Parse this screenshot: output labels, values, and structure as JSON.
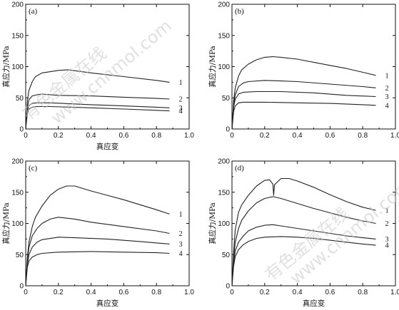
{
  "watermark": {
    "cn": "有色金属在线",
    "url": "www.cnnmol.com"
  },
  "chart_data": [
    {
      "type": "line",
      "panel": "(a)",
      "xlabel": "真应变",
      "ylabel": "真应力/MPa",
      "xlim": [
        0,
        1.0
      ],
      "ylim": [
        0,
        200
      ],
      "xticks": [
        "0",
        "0.2",
        "0.4",
        "0.6",
        "0.8",
        "1.0"
      ],
      "yticks": [
        "0",
        "50",
        "100",
        "150",
        "200"
      ],
      "series": [
        {
          "name": "1",
          "x": [
            0,
            0.01,
            0.02,
            0.04,
            0.06,
            0.1,
            0.2,
            0.26,
            0.4,
            0.6,
            0.8,
            0.88
          ],
          "y": [
            0,
            45,
            62,
            76,
            84,
            90,
            94,
            95,
            90,
            84,
            78,
            75
          ]
        },
        {
          "name": "2",
          "x": [
            0,
            0.01,
            0.02,
            0.04,
            0.07,
            0.1,
            0.2,
            0.4,
            0.6,
            0.8,
            0.88
          ],
          "y": [
            0,
            35,
            47,
            53,
            55,
            56,
            54,
            53,
            51,
            49,
            48
          ]
        },
        {
          "name": "3",
          "x": [
            0,
            0.01,
            0.02,
            0.04,
            0.07,
            0.15,
            0.4,
            0.6,
            0.8,
            0.88
          ],
          "y": [
            0,
            30,
            38,
            41,
            42,
            42,
            39,
            37,
            35,
            34
          ]
        },
        {
          "name": "4",
          "x": [
            0,
            0.01,
            0.02,
            0.04,
            0.07,
            0.15,
            0.4,
            0.6,
            0.8,
            0.88
          ],
          "y": [
            0,
            25,
            32,
            35,
            36,
            36,
            34,
            32,
            30,
            29
          ]
        }
      ]
    },
    {
      "type": "line",
      "panel": "(b)",
      "xlabel": "",
      "ylabel": "真应力/MPa",
      "xlim": [
        0,
        1.0
      ],
      "ylim": [
        0,
        200
      ],
      "xticks": [
        "0",
        "0.2",
        "0.4",
        "0.6",
        "0.8",
        "1.0"
      ],
      "yticks": [
        "0",
        "50",
        "100",
        "150",
        "200"
      ],
      "series": [
        {
          "name": "1",
          "x": [
            0,
            0.01,
            0.02,
            0.04,
            0.06,
            0.1,
            0.15,
            0.2,
            0.25,
            0.3,
            0.4,
            0.5,
            0.6,
            0.7,
            0.8,
            0.88
          ],
          "y": [
            0,
            45,
            66,
            85,
            95,
            104,
            111,
            115,
            116,
            115,
            112,
            107,
            102,
            97,
            91,
            86
          ]
        },
        {
          "name": "2",
          "x": [
            0,
            0.01,
            0.02,
            0.04,
            0.07,
            0.1,
            0.2,
            0.3,
            0.4,
            0.6,
            0.8,
            0.88
          ],
          "y": [
            0,
            40,
            55,
            68,
            74,
            76,
            78,
            77,
            76,
            72,
            68,
            66
          ]
        },
        {
          "name": "3",
          "x": [
            0,
            0.01,
            0.02,
            0.04,
            0.07,
            0.15,
            0.3,
            0.5,
            0.7,
            0.88
          ],
          "y": [
            0,
            35,
            48,
            56,
            59,
            60,
            60,
            58,
            54,
            52
          ]
        },
        {
          "name": "4",
          "x": [
            0,
            0.01,
            0.02,
            0.04,
            0.07,
            0.2,
            0.4,
            0.6,
            0.8,
            0.88
          ],
          "y": [
            0,
            28,
            37,
            42,
            43,
            43,
            42,
            41,
            39,
            38
          ]
        }
      ]
    },
    {
      "type": "line",
      "panel": "(c)",
      "xlabel": "真应变",
      "ylabel": "真应力/MPa",
      "xlim": [
        0,
        1.0
      ],
      "ylim": [
        0,
        200
      ],
      "xticks": [
        "0",
        "0.2",
        "0.4",
        "0.6",
        "0.8",
        "1.0"
      ],
      "yticks": [
        "0",
        "50",
        "100",
        "150",
        "200"
      ],
      "series": [
        {
          "name": "1",
          "x": [
            0,
            0.01,
            0.02,
            0.04,
            0.06,
            0.1,
            0.15,
            0.2,
            0.25,
            0.3,
            0.4,
            0.5,
            0.6,
            0.7,
            0.8,
            0.88
          ],
          "y": [
            0,
            45,
            70,
            95,
            110,
            128,
            145,
            155,
            160,
            160,
            152,
            145,
            138,
            130,
            122,
            115
          ]
        },
        {
          "name": "2",
          "x": [
            0,
            0.01,
            0.02,
            0.04,
            0.07,
            0.1,
            0.15,
            0.2,
            0.3,
            0.4,
            0.6,
            0.8,
            0.88
          ],
          "y": [
            0,
            40,
            62,
            80,
            92,
            100,
            107,
            110,
            107,
            102,
            95,
            88,
            84
          ]
        },
        {
          "name": "3",
          "x": [
            0,
            0.01,
            0.02,
            0.04,
            0.07,
            0.1,
            0.2,
            0.3,
            0.5,
            0.7,
            0.88
          ],
          "y": [
            0,
            35,
            50,
            62,
            70,
            74,
            78,
            77,
            75,
            71,
            67
          ]
        },
        {
          "name": "4",
          "x": [
            0,
            0.01,
            0.02,
            0.04,
            0.07,
            0.1,
            0.2,
            0.4,
            0.6,
            0.8,
            0.88
          ],
          "y": [
            0,
            30,
            40,
            46,
            50,
            52,
            54,
            55,
            54,
            53,
            52
          ]
        }
      ]
    },
    {
      "type": "line",
      "panel": "(d)",
      "xlabel": "真应变",
      "ylabel": "真应力/MPa",
      "xlim": [
        0,
        1.0
      ],
      "ylim": [
        0,
        200
      ],
      "xticks": [
        "0",
        "0.2",
        "0.4",
        "0.6",
        "0.8",
        "1.0"
      ],
      "yticks": [
        "0",
        "50",
        "100",
        "150",
        "200"
      ],
      "series": [
        {
          "name": "1",
          "x": [
            0,
            0.01,
            0.02,
            0.04,
            0.06,
            0.1,
            0.15,
            0.2,
            0.23,
            0.25,
            0.255,
            0.26,
            0.3,
            0.35,
            0.4,
            0.5,
            0.6,
            0.7,
            0.8,
            0.88
          ],
          "y": [
            0,
            55,
            90,
            118,
            130,
            145,
            160,
            169,
            170,
            163,
            145,
            162,
            172,
            172,
            168,
            158,
            146,
            135,
            126,
            121
          ]
        },
        {
          "name": "2",
          "x": [
            0,
            0.01,
            0.02,
            0.04,
            0.06,
            0.1,
            0.15,
            0.2,
            0.25,
            0.3,
            0.4,
            0.5,
            0.6,
            0.7,
            0.8,
            0.88
          ],
          "y": [
            0,
            45,
            70,
            92,
            105,
            120,
            133,
            140,
            143,
            140,
            132,
            124,
            117,
            110,
            104,
            100
          ]
        },
        {
          "name": "3",
          "x": [
            0,
            0.01,
            0.02,
            0.04,
            0.07,
            0.1,
            0.15,
            0.2,
            0.25,
            0.3,
            0.4,
            0.5,
            0.6,
            0.7,
            0.8,
            0.88
          ],
          "y": [
            0,
            38,
            56,
            70,
            80,
            88,
            94,
            97,
            98,
            96,
            92,
            88,
            84,
            80,
            77,
            75
          ]
        },
        {
          "name": "4",
          "x": [
            0,
            0.01,
            0.02,
            0.04,
            0.07,
            0.1,
            0.15,
            0.2,
            0.3,
            0.4,
            0.5,
            0.6,
            0.7,
            0.8,
            0.88
          ],
          "y": [
            0,
            32,
            47,
            58,
            66,
            71,
            76,
            78,
            79,
            78,
            76,
            73,
            70,
            67,
            65
          ]
        }
      ]
    }
  ]
}
